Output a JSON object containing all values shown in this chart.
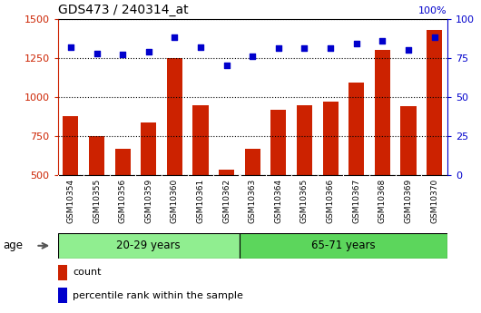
{
  "title": "GDS473 / 240314_at",
  "samples": [
    "GSM10354",
    "GSM10355",
    "GSM10356",
    "GSM10359",
    "GSM10360",
    "GSM10361",
    "GSM10362",
    "GSM10363",
    "GSM10364",
    "GSM10365",
    "GSM10366",
    "GSM10367",
    "GSM10368",
    "GSM10369",
    "GSM10370"
  ],
  "counts": [
    880,
    750,
    670,
    840,
    1250,
    950,
    535,
    670,
    920,
    950,
    970,
    1090,
    1300,
    940,
    1430
  ],
  "percentiles": [
    82,
    78,
    77,
    79,
    88,
    82,
    70,
    76,
    81,
    81,
    81,
    84,
    86,
    80,
    88
  ],
  "groups": [
    {
      "label": "20-29 years",
      "start": 0,
      "end": 7,
      "color": "#90ee90"
    },
    {
      "label": "65-71 years",
      "start": 7,
      "end": 15,
      "color": "#5cd65c"
    }
  ],
  "ylim_left": [
    500,
    1500
  ],
  "ylim_right": [
    0,
    100
  ],
  "yticks_left": [
    500,
    750,
    1000,
    1250,
    1500
  ],
  "yticks_right": [
    0,
    25,
    50,
    75,
    100
  ],
  "bar_color": "#cc2200",
  "dot_color": "#0000cc",
  "plot_bg": "#ffffff",
  "tick_bg": "#c8c8c8",
  "group1_color": "#90ee90",
  "group2_color": "#5cd65c",
  "age_label": "age",
  "legend_count": "count",
  "legend_percentile": "percentile rank within the sample",
  "fig_width": 5.3,
  "fig_height": 3.45,
  "dpi": 100
}
